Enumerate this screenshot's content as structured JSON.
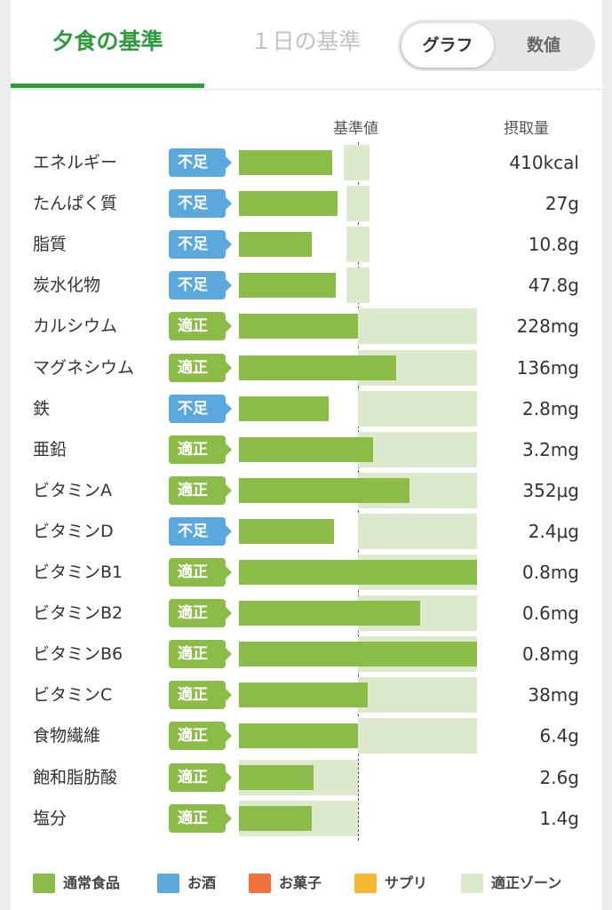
{
  "tabs": {
    "active_label": "夕食の基準",
    "inactive_label": "１日の基準"
  },
  "view_toggle": {
    "graph_label": "グラフ",
    "number_label": "数値",
    "selected": "graph"
  },
  "chart_header": {
    "reference_label": "基準値",
    "intake_label": "摂取量"
  },
  "colors": {
    "accent": "#2e9b3f",
    "bar_green": "#8cbc48",
    "badge_ok": "#8cbc48",
    "badge_low": "#5aa8dc",
    "zone": "#dde9cc"
  },
  "status_labels": {
    "ok": "適正",
    "low": "不足"
  },
  "nutrients": [
    {
      "name": "エネルギー",
      "status": "不足",
      "amount": "410kcal"
    },
    {
      "name": "たんぱく質",
      "status": "不足",
      "amount": "27g"
    },
    {
      "name": "脂質",
      "status": "不足",
      "amount": "10.8g"
    },
    {
      "name": "炭水化物",
      "status": "不足",
      "amount": "47.8g"
    },
    {
      "name": "カルシウム",
      "status": "適正",
      "amount": "228mg"
    },
    {
      "name": "マグネシウム",
      "status": "適正",
      "amount": "136mg"
    },
    {
      "name": "鉄",
      "status": "不足",
      "amount": "2.8mg"
    },
    {
      "name": "亜鉛",
      "status": "適正",
      "amount": "3.2mg"
    },
    {
      "name": "ビタミンA",
      "status": "適正",
      "amount": "352μg"
    },
    {
      "name": "ビタミンD",
      "status": "不足",
      "amount": "2.4μg"
    },
    {
      "name": "ビタミンB1",
      "status": "適正",
      "amount": "0.8mg"
    },
    {
      "name": "ビタミンB2",
      "status": "適正",
      "amount": "0.6mg"
    },
    {
      "name": "ビタミンB6",
      "status": "適正",
      "amount": "0.8mg"
    },
    {
      "name": "ビタミンC",
      "status": "適正",
      "amount": "38mg"
    },
    {
      "name": "食物繊維",
      "status": "適正",
      "amount": "6.4g"
    },
    {
      "name": "飽和脂肪酸",
      "status": "適正",
      "amount": "2.6g"
    },
    {
      "name": "塩分",
      "status": "適正",
      "amount": "1.4g"
    }
  ],
  "chart_data": {
    "type": "bar",
    "orientation": "horizontal",
    "categories": [
      "エネルギー",
      "たんぱく質",
      "脂質",
      "炭水化物",
      "カルシウム",
      "マグネシウム",
      "鉄",
      "亜鉛",
      "ビタミンA",
      "ビタミンD",
      "ビタミンB1",
      "ビタミンB2",
      "ビタミンB6",
      "ビタミンC",
      "食物繊維",
      "飽和脂肪酸",
      "塩分"
    ],
    "values_percent_of_reference": [
      78,
      83,
      61,
      81,
      100,
      132,
      75,
      113,
      143,
      80,
      200,
      152,
      200,
      108,
      100,
      63,
      61
    ],
    "appropriate_zone_percent": [
      [
        88,
        110
      ],
      [
        90,
        110
      ],
      [
        90,
        110
      ],
      [
        90,
        110
      ],
      [
        100,
        200
      ],
      [
        100,
        200
      ],
      [
        100,
        200
      ],
      [
        100,
        200
      ],
      [
        100,
        200
      ],
      [
        100,
        200
      ],
      [
        100,
        200
      ],
      [
        100,
        200
      ],
      [
        100,
        200
      ],
      [
        100,
        200
      ],
      [
        100,
        200
      ],
      [
        0,
        100
      ],
      [
        0,
        100
      ]
    ],
    "reference_percent": 100
  },
  "legend": [
    {
      "label": "通常食品",
      "color": "#8cbc48"
    },
    {
      "label": "お酒",
      "color": "#5aa8dc"
    },
    {
      "label": "お菓子",
      "color": "#f2703a"
    },
    {
      "label": "サプリ",
      "color": "#f7b733"
    },
    {
      "label": "適正ゾーン",
      "color": "#dde9cc"
    }
  ]
}
